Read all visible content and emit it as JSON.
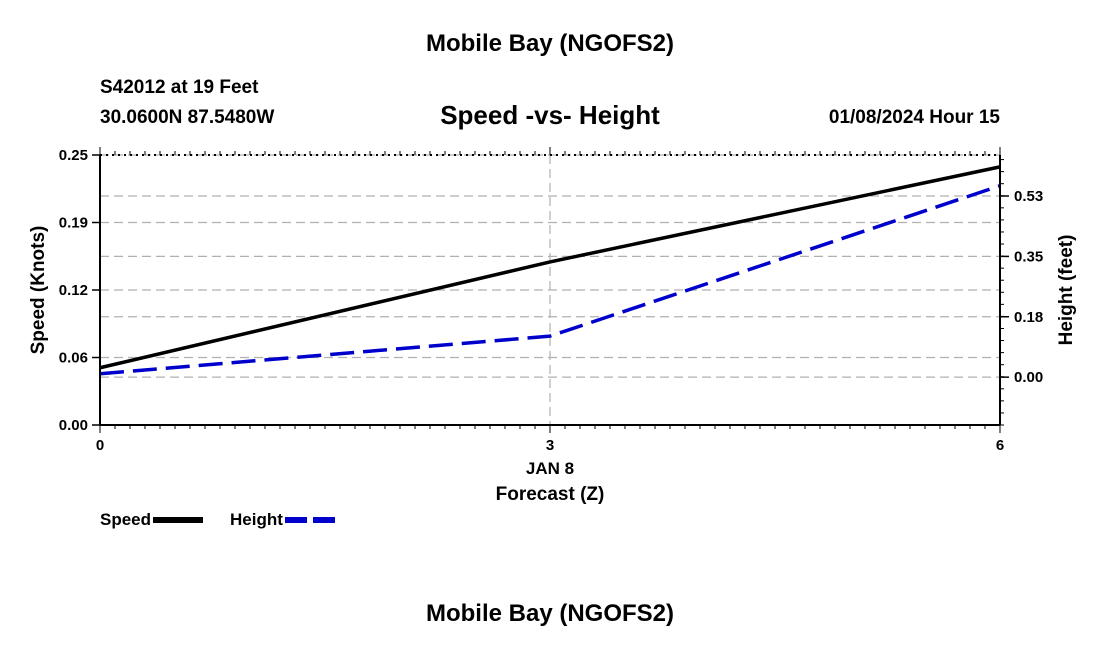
{
  "header": {
    "title": "Mobile Bay (NGOFS2)",
    "station": "S42012 at 19 Feet",
    "coords": "30.0600N  87.5480W",
    "subtitle": "Speed -vs- Height",
    "datetime": "01/08/2024 Hour 15"
  },
  "footer": {
    "title": "Mobile Bay (NGOFS2)"
  },
  "colors": {
    "speed": "#000000",
    "height": "#0000cc",
    "grid": "#b0b0b0"
  },
  "chart_data": {
    "type": "line",
    "title": "Speed -vs- Height",
    "xlabel": "Forecast (Z)",
    "x_date_label": "JAN 8",
    "ylabel_left": "Speed (Knots)",
    "ylabel_right": "Height (feet)",
    "x": [
      0,
      3,
      6
    ],
    "xlim": [
      0,
      6
    ],
    "x_ticks": [
      "0",
      "3",
      "6"
    ],
    "ylim_left": [
      0,
      0.25
    ],
    "y_ticks_left": [
      "0.00",
      "0.06",
      "0.12",
      "0.19",
      "0.25"
    ],
    "y_ticks_left_values": [
      0,
      0.0625,
      0.125,
      0.1875,
      0.25
    ],
    "ylim_right": [
      -0.14,
      0.65
    ],
    "y_ticks_right": [
      "0.00",
      "0.18",
      "0.35",
      "0.53"
    ],
    "y_ticks_right_values": [
      0,
      0.1767,
      0.3533,
      0.53
    ],
    "series": [
      {
        "name": "Speed",
        "axis": "left",
        "style": "solid",
        "values": [
          0.053,
          0.151,
          0.239
        ]
      },
      {
        "name": "Height",
        "axis": "right",
        "style": "dashed",
        "values": [
          0.01,
          0.12,
          0.56
        ]
      }
    ],
    "legend": [
      "Speed",
      "Height"
    ],
    "legend_position": "bottom-left"
  }
}
